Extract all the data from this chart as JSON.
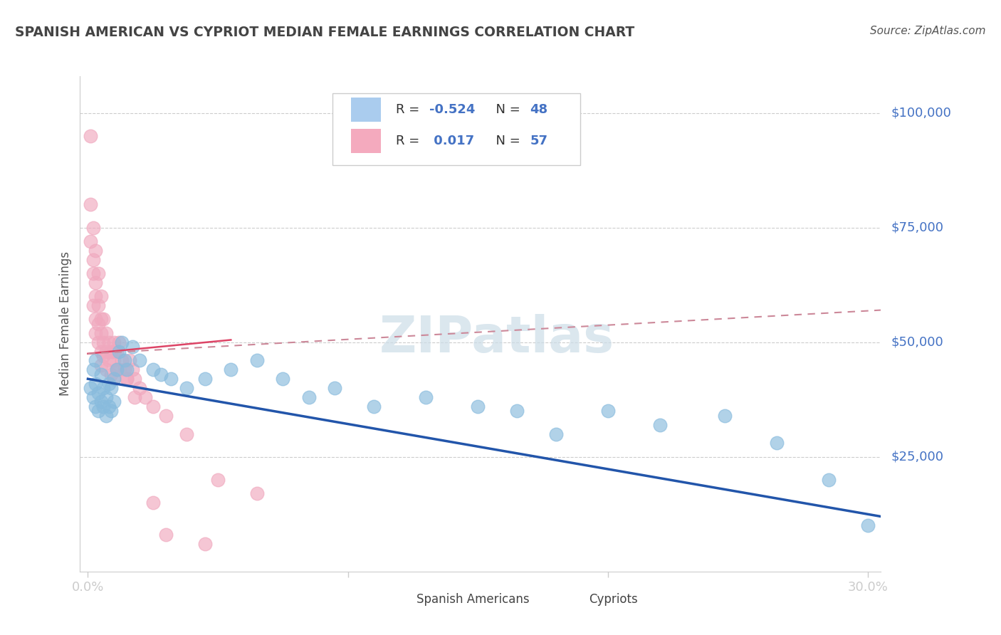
{
  "title": "SPANISH AMERICAN VS CYPRIOT MEDIAN FEMALE EARNINGS CORRELATION CHART",
  "source": "Source: ZipAtlas.com",
  "ylabel": "Median Female Earnings",
  "xlim": [
    -0.003,
    0.305
  ],
  "ylim": [
    0,
    108000
  ],
  "ytick_vals": [
    25000,
    50000,
    75000,
    100000
  ],
  "ytick_labels": [
    "$25,000",
    "$50,000",
    "$75,000",
    "$100,000"
  ],
  "xtick_vals": [
    0.0,
    0.1,
    0.2,
    0.3
  ],
  "xtick_labels": [
    "0.0%",
    "",
    "",
    "30.0%"
  ],
  "grid_color": "#cccccc",
  "background_color": "#ffffff",
  "blue_scatter_color": "#88bbdd",
  "pink_scatter_color": "#f0a8be",
  "blue_line_color": "#2255aa",
  "pink_solid_color": "#dd4466",
  "pink_dash_color": "#cc8899",
  "right_label_color": "#4472c4",
  "title_color": "#444444",
  "watermark_color": "#ccdde8",
  "legend_box_color": "#cccccc",
  "blue_legend_color": "#aaccee",
  "pink_legend_color": "#f4aabe",
  "legend_text_color": "#333333",
  "legend_value_color": "#4472c4",
  "source_color": "#555555",
  "blue_R": -0.524,
  "blue_N": 48,
  "pink_R": 0.017,
  "pink_N": 57,
  "blue_trend": [
    0.0,
    0.305,
    42000,
    12000
  ],
  "pink_solid_trend": [
    0.0,
    0.055,
    47500,
    50500
  ],
  "pink_dash_trend": [
    0.0,
    0.305,
    47500,
    57000
  ],
  "spanish_x": [
    0.001,
    0.002,
    0.002,
    0.003,
    0.003,
    0.003,
    0.004,
    0.004,
    0.005,
    0.005,
    0.006,
    0.006,
    0.007,
    0.007,
    0.008,
    0.008,
    0.009,
    0.009,
    0.01,
    0.01,
    0.011,
    0.012,
    0.013,
    0.014,
    0.015,
    0.017,
    0.02,
    0.025,
    0.028,
    0.032,
    0.038,
    0.045,
    0.055,
    0.065,
    0.075,
    0.085,
    0.095,
    0.11,
    0.13,
    0.15,
    0.165,
    0.18,
    0.2,
    0.22,
    0.245,
    0.265,
    0.285,
    0.3
  ],
  "spanish_y": [
    40000,
    38000,
    44000,
    36000,
    41000,
    46000,
    35000,
    39000,
    37000,
    43000,
    36000,
    40000,
    34000,
    38000,
    36000,
    41000,
    35000,
    40000,
    37000,
    42000,
    44000,
    48000,
    50000,
    46000,
    44000,
    49000,
    46000,
    44000,
    43000,
    42000,
    40000,
    42000,
    44000,
    46000,
    42000,
    38000,
    40000,
    36000,
    38000,
    36000,
    35000,
    30000,
    35000,
    32000,
    34000,
    28000,
    20000,
    10000
  ],
  "cypriot_x": [
    0.001,
    0.001,
    0.001,
    0.002,
    0.002,
    0.002,
    0.002,
    0.003,
    0.003,
    0.003,
    0.003,
    0.003,
    0.004,
    0.004,
    0.004,
    0.004,
    0.005,
    0.005,
    0.005,
    0.005,
    0.005,
    0.006,
    0.006,
    0.006,
    0.007,
    0.007,
    0.007,
    0.008,
    0.008,
    0.009,
    0.009,
    0.01,
    0.01,
    0.01,
    0.011,
    0.011,
    0.012,
    0.013,
    0.014,
    0.015,
    0.016,
    0.017,
    0.018,
    0.02,
    0.022,
    0.025,
    0.03,
    0.038,
    0.05,
    0.065,
    0.01,
    0.012,
    0.015,
    0.018,
    0.025,
    0.03,
    0.045
  ],
  "cypriot_y": [
    95000,
    80000,
    72000,
    75000,
    68000,
    65000,
    58000,
    70000,
    63000,
    60000,
    55000,
    52000,
    65000,
    58000,
    54000,
    50000,
    60000,
    55000,
    52000,
    48000,
    45000,
    55000,
    50000,
    47000,
    52000,
    48000,
    44000,
    50000,
    46000,
    48000,
    43000,
    50000,
    46000,
    42000,
    48000,
    44000,
    50000,
    46000,
    44000,
    42000,
    46000,
    44000,
    42000,
    40000,
    38000,
    36000,
    34000,
    30000,
    20000,
    17000,
    48000,
    44000,
    42000,
    38000,
    15000,
    8000,
    6000
  ]
}
